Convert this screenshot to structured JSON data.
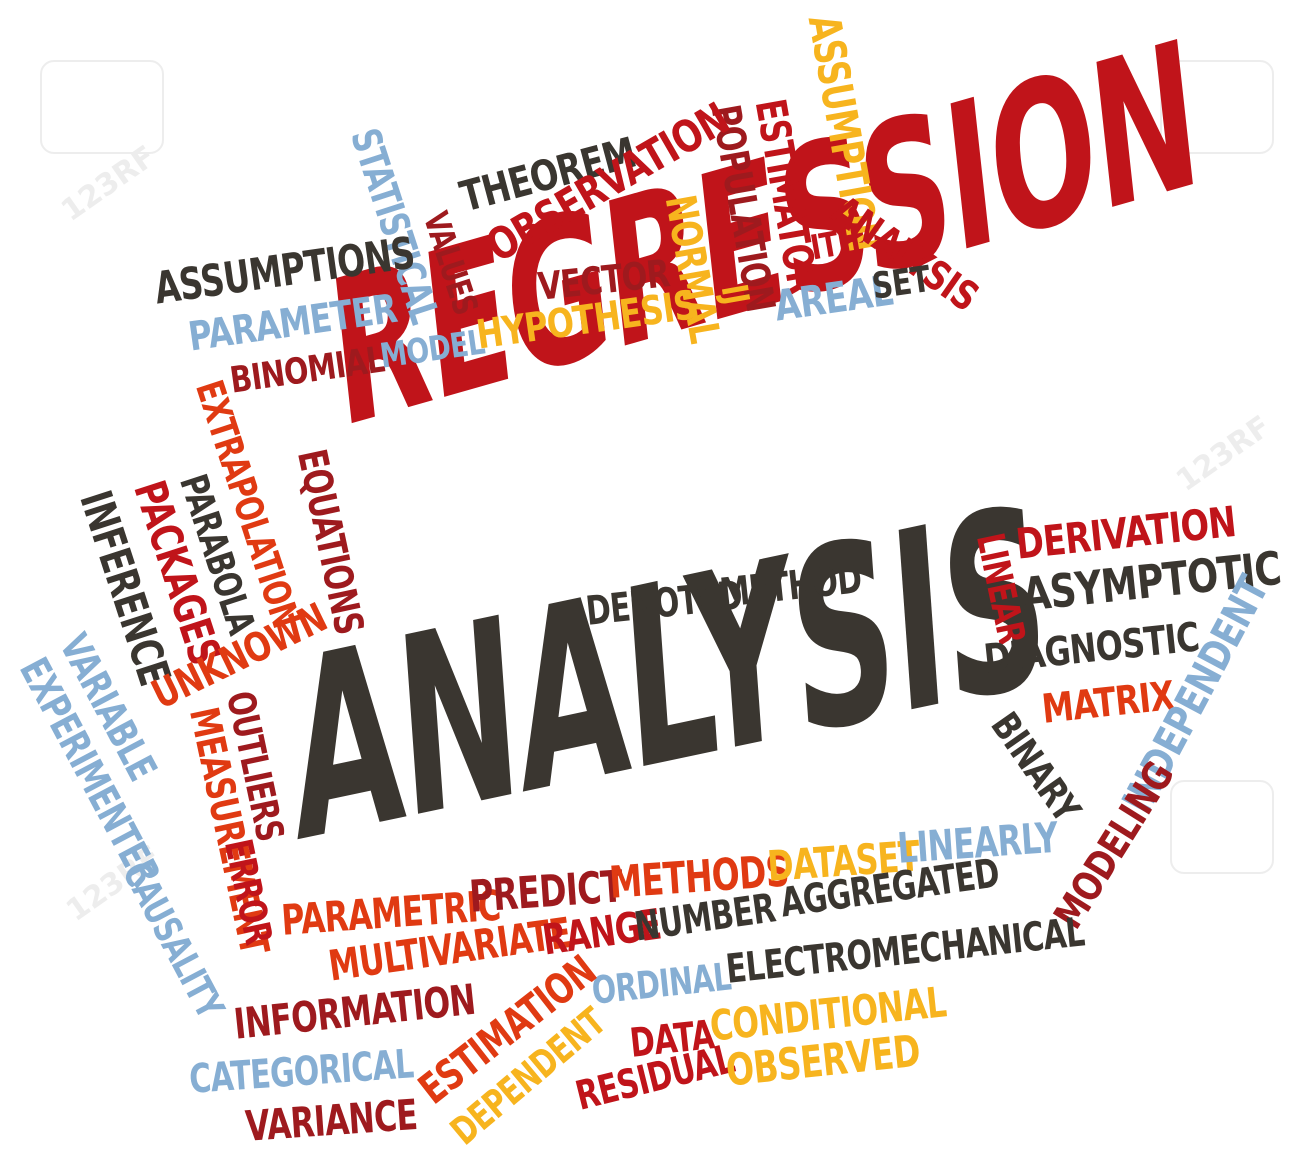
{
  "colors": {
    "red": "#c0141a",
    "dark_red": "#9e1a1e",
    "orange_red": "#e03a12",
    "dark": "#3a3630",
    "blue": "#86aed3",
    "yellow": "#f7b41e"
  },
  "watermark": "123RF",
  "words": {
    "regression": "REGRESSION",
    "analysis_big": "ANALYSIS",
    "assumption": "ASSUMPTION",
    "estimator": "ESTIMATOR",
    "population": "POPULATION",
    "theorem": "THEOREM",
    "observation": "OBSERVATION",
    "statistical": "STATISTICAL",
    "values": "VALUES",
    "normal": "NORMAL",
    "assumptions": "ASSUMPTIONS",
    "parameter": "PARAMETER",
    "vector": "VECTOR",
    "ij": "IJ",
    "ith": "ITH",
    "analysis_small": "ANALYSIS",
    "areal": "AREAL",
    "set": "SET",
    "binomial": "BINOMIAL",
    "model": "MODEL",
    "hypothesis": "HYPOTHESIS",
    "extrapolation": "EXTRAPOLATION",
    "equations": "EQUATIONS",
    "parabola": "PARABOLA",
    "packages": "PACKAGES",
    "inference": "INFERENCE",
    "unknown": "UNKNOWN",
    "variable": "VARIABLE",
    "experimenter": "EXPERIMENTER",
    "causality": "CAUSALITY",
    "outliers": "OUTLIERS",
    "measurement": "MEASUREMENT",
    "error": "ERROR",
    "denoted": "DENOTED",
    "method": "METHOD",
    "linear": "LINEAR",
    "derivation": "DERIVATION",
    "asymptotic": "ASYMPTOTIC",
    "diagnostic": "DIAGNOSTIC",
    "matrix": "MATRIX",
    "binary": "BINARY",
    "independent": "INDEPENDENT",
    "modeling": "MODELING",
    "parametric": "PARAMETRIC",
    "predict": "PREDICT",
    "methods": "METHODS",
    "dataset": "DATASET",
    "linearly": "LINEARLY",
    "multivariate": "MULTIVARIATE",
    "range": "RANGE",
    "number": "NUMBER",
    "aggregated": "AGGREGATED",
    "information": "INFORMATION",
    "ordinal": "ORDINAL",
    "electromechanical": "ELECTROMECHANICAL",
    "estimation": "ESTIMATION",
    "dependent": "DEPENDENT",
    "data": "DATA",
    "conditional": "CONDITIONAL",
    "categorical": "CATEGORICAL",
    "residual": "RESIDUAL",
    "observed": "OBSERVED",
    "variance": "VARIANCE"
  }
}
